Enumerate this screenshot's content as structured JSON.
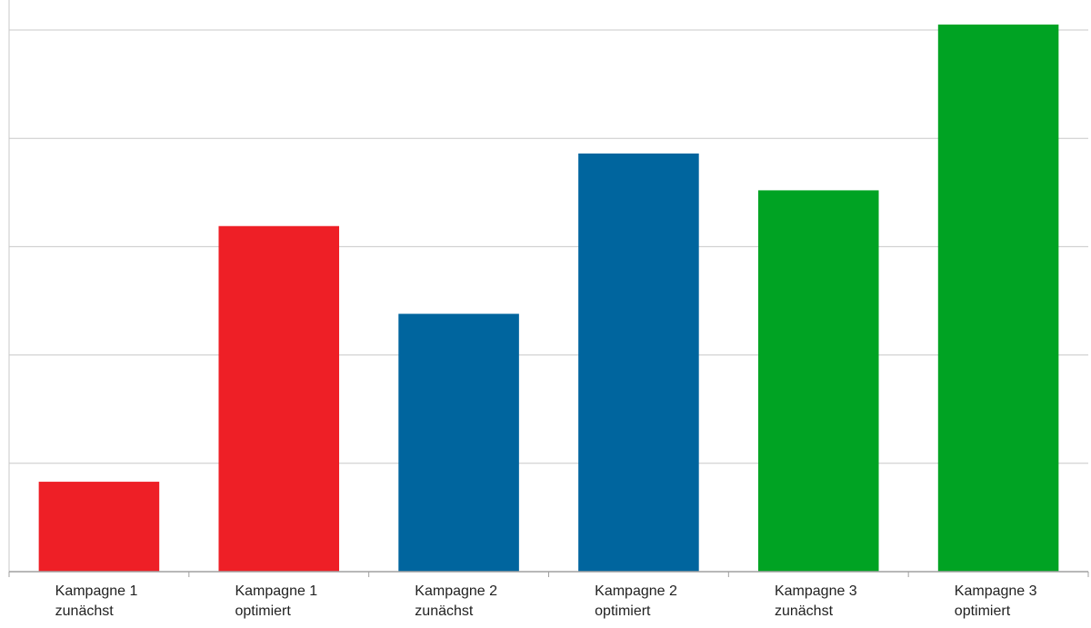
{
  "chart_data": {
    "type": "bar",
    "title": "",
    "xlabel": "",
    "ylabel": "",
    "ylim": [
      0,
      5
    ],
    "grid": true,
    "legend": "none",
    "categories": [
      [
        "Kampagne 1",
        "zunächst"
      ],
      [
        "Kampagne 1",
        "optimiert"
      ],
      [
        "Kampagne 2",
        "zunächst"
      ],
      [
        "Kampagne 2",
        "optimiert"
      ],
      [
        "Kampagne 3",
        "zunächst"
      ],
      [
        "Kampagne 3",
        "optimiert"
      ]
    ],
    "values": [
      0.83,
      3.19,
      2.38,
      3.86,
      3.52,
      5.05
    ],
    "colors": [
      "#ee1f26",
      "#ee1f26",
      "#00659e",
      "#00659e",
      "#00a323",
      "#00a323"
    ],
    "gridline_color": "#c8c8c8",
    "axis_color": "#a0a0a0"
  }
}
